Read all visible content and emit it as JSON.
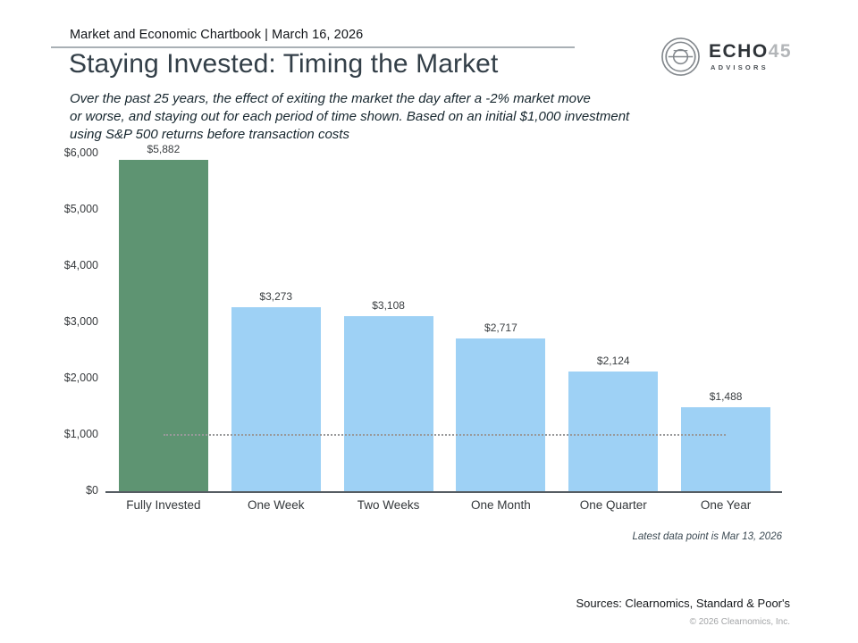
{
  "header": {
    "chartbook_label": "Market and Economic Chartbook | March 16, 2026"
  },
  "logo": {
    "name": "ECHO",
    "number": "45",
    "subtext": "ADVISORS"
  },
  "title": "Staying Invested: Timing the Market",
  "subtitle_lines": [
    "Over the past 25 years, the effect of exiting the market the day after a -2% market move",
    "or worse, and staying out for each period of time shown. Based on an initial $1,000 investment",
    "using S&P 500 returns before transaction costs"
  ],
  "chart_data": {
    "type": "bar",
    "title": "",
    "xlabel": "",
    "ylabel": "",
    "categories": [
      "Fully Invested",
      "One Week",
      "Two Weeks",
      "One Month",
      "One Quarter",
      "One Year"
    ],
    "values": [
      5882,
      3273,
      3108,
      2717,
      2124,
      1488
    ],
    "value_labels": [
      "$5,882",
      "$3,273",
      "$3,108",
      "$2,717",
      "$2,124",
      "$1,488"
    ],
    "bar_colors": [
      "#5e9472",
      "#9ed1f5",
      "#9ed1f5",
      "#9ed1f5",
      "#9ed1f5",
      "#9ed1f5"
    ],
    "ylim": [
      0,
      6000
    ],
    "ytick_step": 1000,
    "ytick_labels": [
      "$0",
      "$1,000",
      "$2,000",
      "$3,000",
      "$4,000",
      "$5,000",
      "$6,000"
    ],
    "reference_line": {
      "value": 1000,
      "style": "dotted",
      "color": "#98999a"
    },
    "grid": false,
    "legend": false
  },
  "footnote": "Latest data point is Mar 13, 2026",
  "sources": "Sources: Clearnomics, Standard & Poor's",
  "copyright": "© 2026 Clearnomics, Inc."
}
